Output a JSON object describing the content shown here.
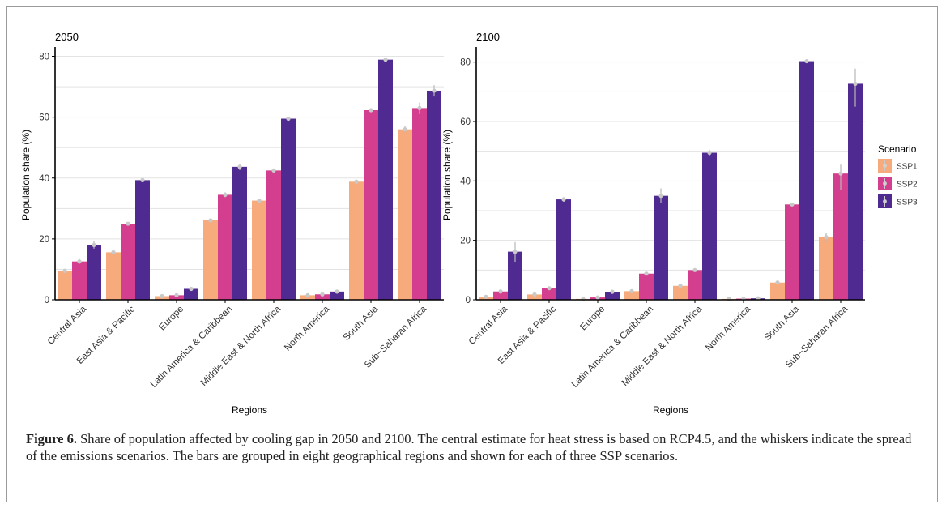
{
  "chart_data": [
    {
      "type": "bar",
      "title": "2050",
      "xlabel": "Regions",
      "ylabel": "Population share (%)",
      "ylim": [
        0,
        82
      ],
      "yticks": [
        0,
        20,
        40,
        60,
        80
      ],
      "grid": true,
      "categories": [
        "Central Asia",
        "East Asia & Pacific",
        "Europe",
        "Latin America & Caribbean",
        "Middle East & North Africa",
        "North America",
        "South Asia",
        "Sub−Saharan Africa"
      ],
      "series": [
        {
          "name": "SSP1",
          "color": "#f7ab7c",
          "values": [
            9.5,
            15.6,
            1.2,
            26.1,
            32.6,
            1.5,
            38.8,
            56.0
          ],
          "err_low": [
            8.8,
            15.0,
            0.8,
            25.5,
            32.0,
            1.0,
            38.2,
            55.0
          ],
          "err_high": [
            10.2,
            16.2,
            1.6,
            26.7,
            33.2,
            2.0,
            39.4,
            57.2
          ]
        },
        {
          "name": "SSP2",
          "color": "#d33f8e",
          "values": [
            12.6,
            25.0,
            1.5,
            34.5,
            42.5,
            1.8,
            62.3,
            63.0
          ],
          "err_low": [
            11.8,
            24.4,
            1.0,
            33.7,
            41.9,
            1.3,
            61.7,
            61.0
          ],
          "err_high": [
            13.4,
            25.6,
            2.0,
            35.3,
            43.1,
            2.3,
            62.9,
            64.8
          ]
        },
        {
          "name": "SSP3",
          "color": "#4e2a91",
          "values": [
            18.0,
            39.3,
            3.6,
            43.7,
            59.5,
            2.7,
            78.9,
            68.7
          ],
          "err_low": [
            16.8,
            38.7,
            3.0,
            42.6,
            58.9,
            2.1,
            78.4,
            66.8
          ],
          "err_high": [
            19.2,
            39.9,
            4.2,
            44.7,
            60.1,
            3.3,
            79.4,
            70.5
          ]
        }
      ]
    },
    {
      "type": "bar",
      "title": "2100",
      "xlabel": "Regions",
      "ylabel": "Population share (%)",
      "ylim": [
        0,
        84
      ],
      "yticks": [
        0,
        20,
        40,
        60,
        80
      ],
      "grid": true,
      "categories": [
        "Central Asia",
        "East Asia & Pacific",
        "Europe",
        "Latin America & Caribbean",
        "Middle East & North Africa",
        "North America",
        "South Asia",
        "Sub−Saharan Africa"
      ],
      "series": [
        {
          "name": "SSP1",
          "color": "#f7ab7c",
          "values": [
            1.0,
            1.8,
            0.3,
            2.9,
            4.7,
            0.3,
            5.8,
            21.1
          ],
          "err_low": [
            0.6,
            1.3,
            0.1,
            2.3,
            4.1,
            0.1,
            5.2,
            19.5
          ],
          "err_high": [
            1.4,
            2.3,
            0.5,
            3.5,
            5.3,
            0.5,
            6.4,
            22.5
          ]
        },
        {
          "name": "SSP2",
          "color": "#d33f8e",
          "values": [
            2.8,
            3.9,
            0.8,
            8.8,
            10.0,
            0.4,
            32.1,
            42.5
          ],
          "err_low": [
            2.2,
            3.3,
            0.4,
            8.2,
            9.4,
            0.2,
            31.6,
            37.0
          ],
          "err_high": [
            3.4,
            4.5,
            1.2,
            9.4,
            10.6,
            0.6,
            32.6,
            45.5
          ]
        },
        {
          "name": "SSP3",
          "color": "#4e2a91",
          "values": [
            16.2,
            33.8,
            2.7,
            35.0,
            49.5,
            0.5,
            80.3,
            72.7
          ],
          "err_low": [
            12.8,
            33.0,
            2.1,
            32.5,
            48.3,
            0.3,
            79.8,
            65.0
          ],
          "err_high": [
            19.4,
            34.6,
            3.3,
            37.5,
            50.5,
            0.7,
            80.8,
            77.8
          ]
        }
      ]
    }
  ],
  "legend": {
    "title": "Scenario",
    "placement": "right",
    "items": [
      {
        "label": "SSP1",
        "color": "#f7ab7c"
      },
      {
        "label": "SSP2",
        "color": "#d33f8e"
      },
      {
        "label": "SSP3",
        "color": "#4e2a91"
      }
    ]
  },
  "caption": {
    "label": "Figure 6.",
    "text": " Share of population affected by cooling gap in 2050 and 2100. The central estimate for heat stress is based on RCP4.5, and the whiskers indicate the spread of the emissions scenarios. The bars are grouped in eight geographical regions and shown for each of three SSP scenarios."
  }
}
